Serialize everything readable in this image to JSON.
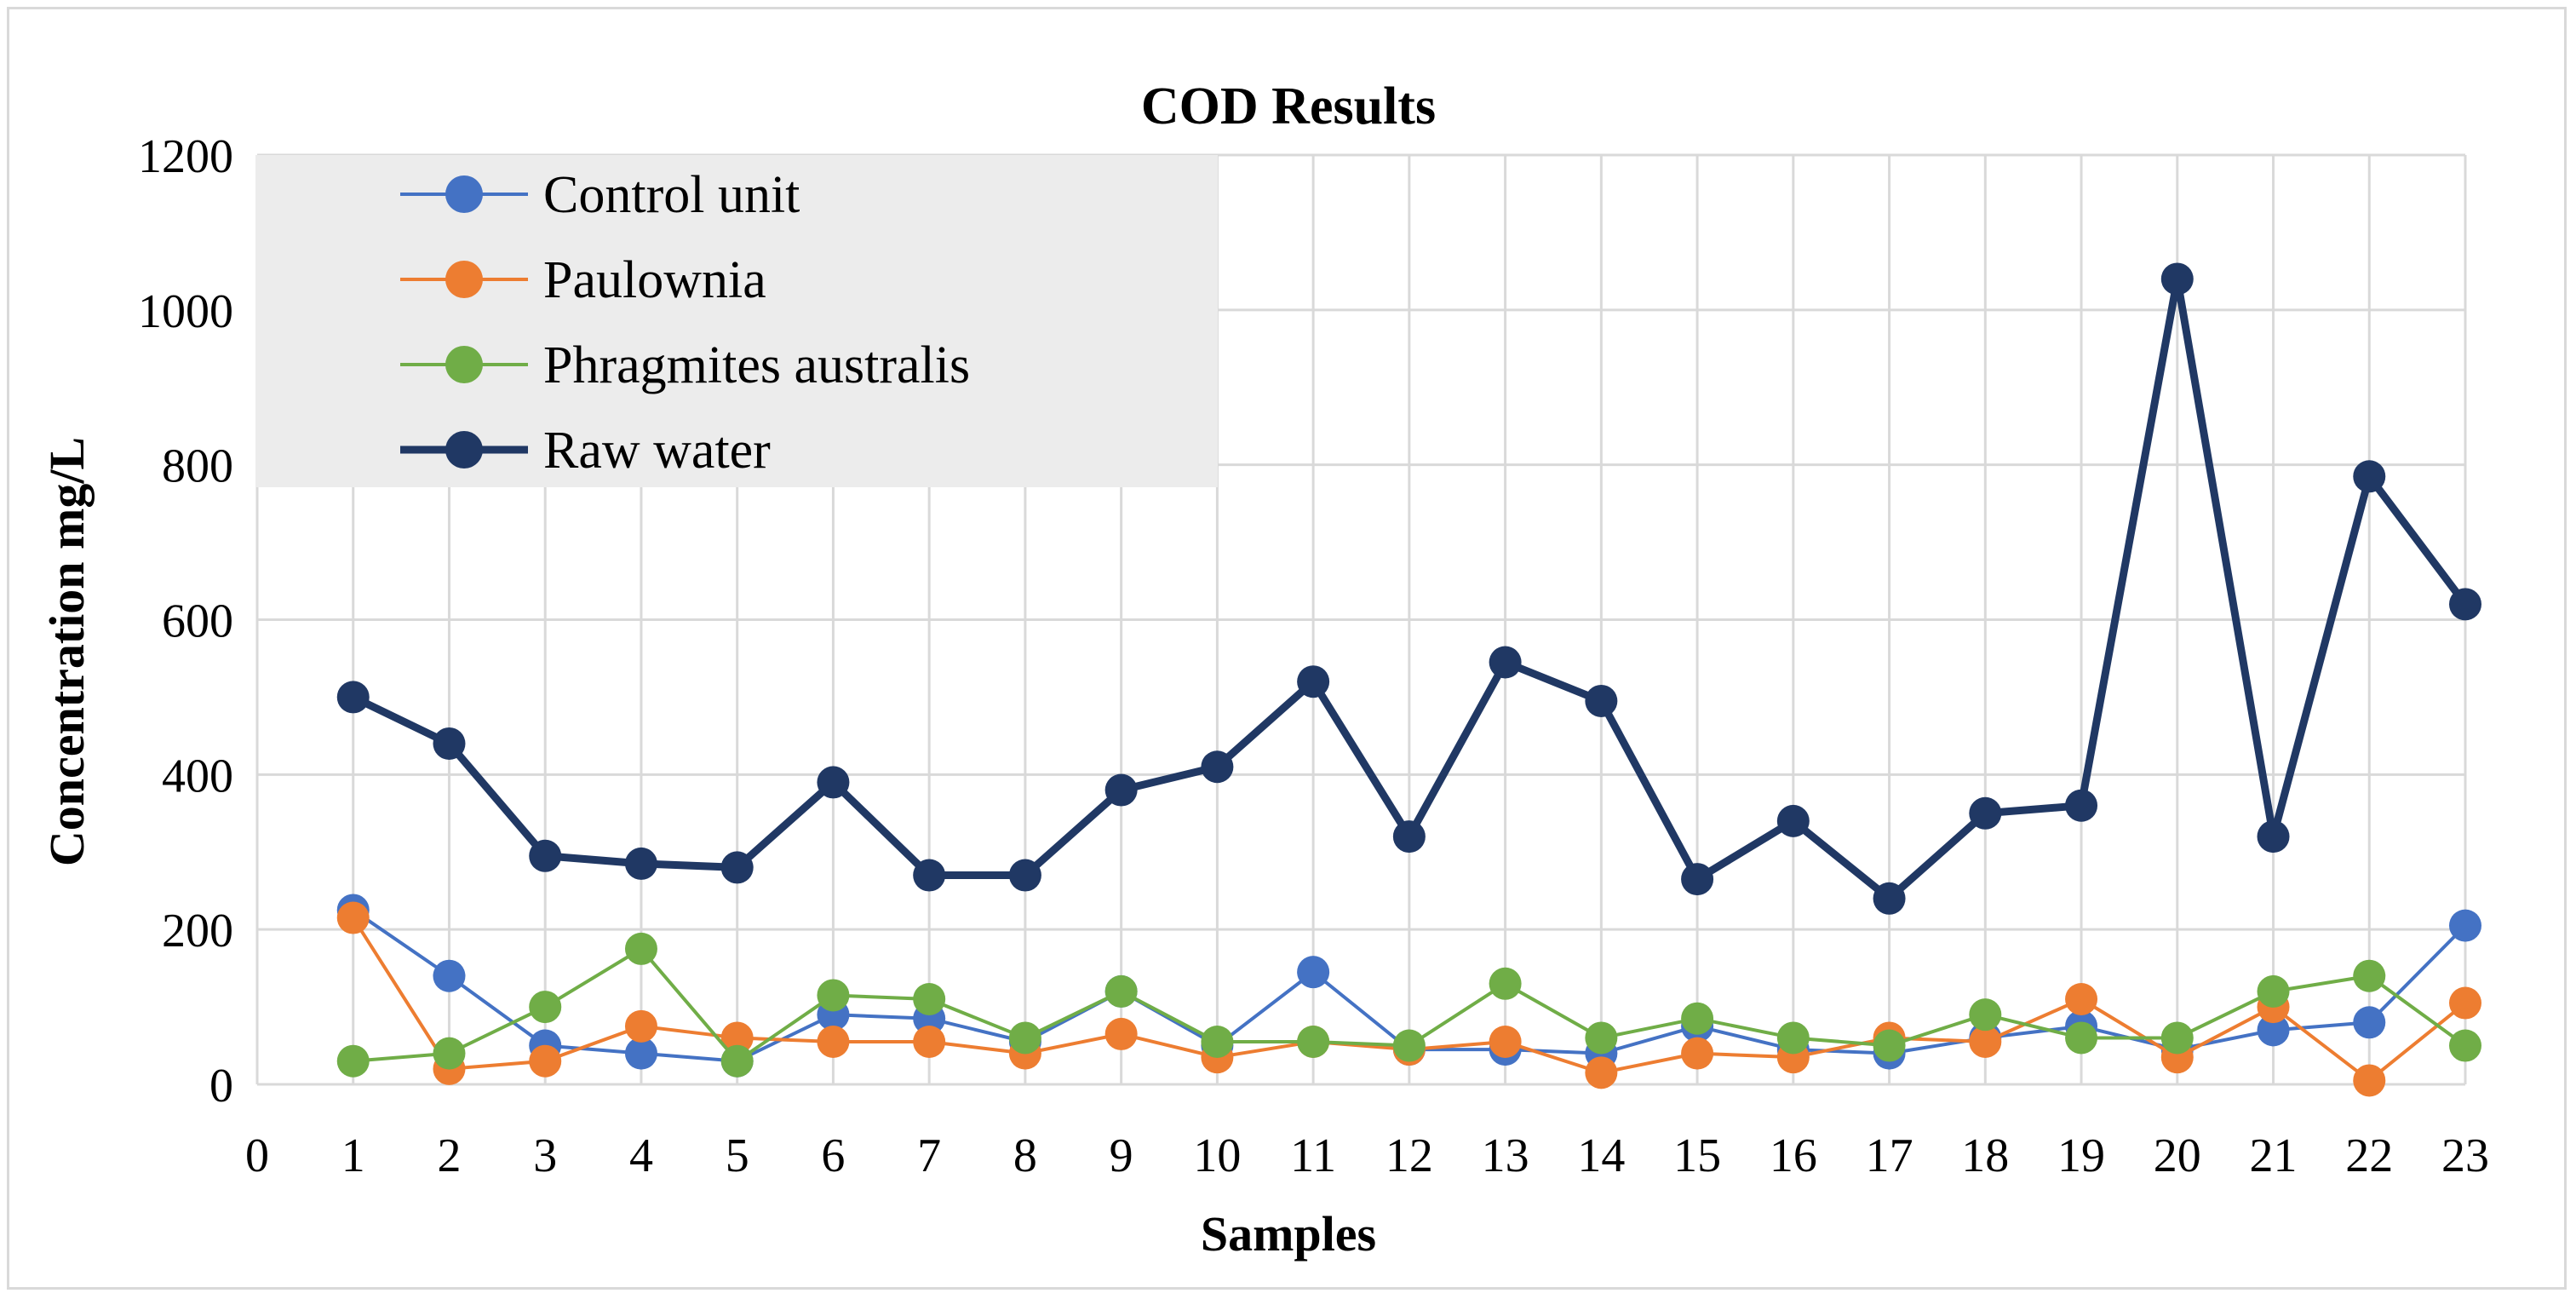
{
  "chart_data": {
    "type": "line",
    "title": "COD Results",
    "xlabel": "Samples",
    "ylabel": "Concentration mg/L",
    "xlim": [
      0,
      23
    ],
    "ylim": [
      0,
      1200
    ],
    "x_ticks": [
      0,
      1,
      2,
      3,
      4,
      5,
      6,
      7,
      8,
      9,
      10,
      11,
      12,
      13,
      14,
      15,
      16,
      17,
      18,
      19,
      20,
      21,
      22,
      23
    ],
    "y_ticks": [
      0,
      200,
      400,
      600,
      800,
      1000,
      1200
    ],
    "grid": true,
    "legend_position": "top-left",
    "x": [
      1,
      2,
      3,
      4,
      5,
      6,
      7,
      8,
      9,
      10,
      11,
      12,
      13,
      14,
      15,
      16,
      17,
      18,
      19,
      20,
      21,
      22,
      23
    ],
    "series": [
      {
        "name": "Control unit",
        "color": "#4472c4",
        "line_weight": "thin",
        "values": [
          225,
          140,
          50,
          40,
          30,
          90,
          85,
          55,
          120,
          50,
          145,
          45,
          45,
          40,
          75,
          45,
          40,
          60,
          75,
          45,
          70,
          80,
          205
        ]
      },
      {
        "name": "Paulownia",
        "color": "#ed7d31",
        "line_weight": "thin",
        "values": [
          215,
          20,
          30,
          75,
          60,
          55,
          55,
          40,
          65,
          35,
          55,
          45,
          55,
          15,
          40,
          35,
          60,
          55,
          110,
          35,
          100,
          5,
          105
        ]
      },
      {
        "name": "Phragmites australis",
        "color": "#70ad47",
        "line_weight": "thin",
        "values": [
          30,
          40,
          100,
          175,
          30,
          115,
          110,
          60,
          120,
          55,
          55,
          50,
          130,
          60,
          85,
          60,
          50,
          90,
          60,
          60,
          120,
          140,
          50
        ]
      },
      {
        "name": "Raw water",
        "color": "#203864",
        "line_weight": "thick",
        "values": [
          500,
          440,
          295,
          285,
          280,
          390,
          270,
          270,
          380,
          410,
          520,
          320,
          545,
          495,
          265,
          340,
          240,
          350,
          360,
          1040,
          320,
          785,
          620
        ]
      }
    ]
  }
}
